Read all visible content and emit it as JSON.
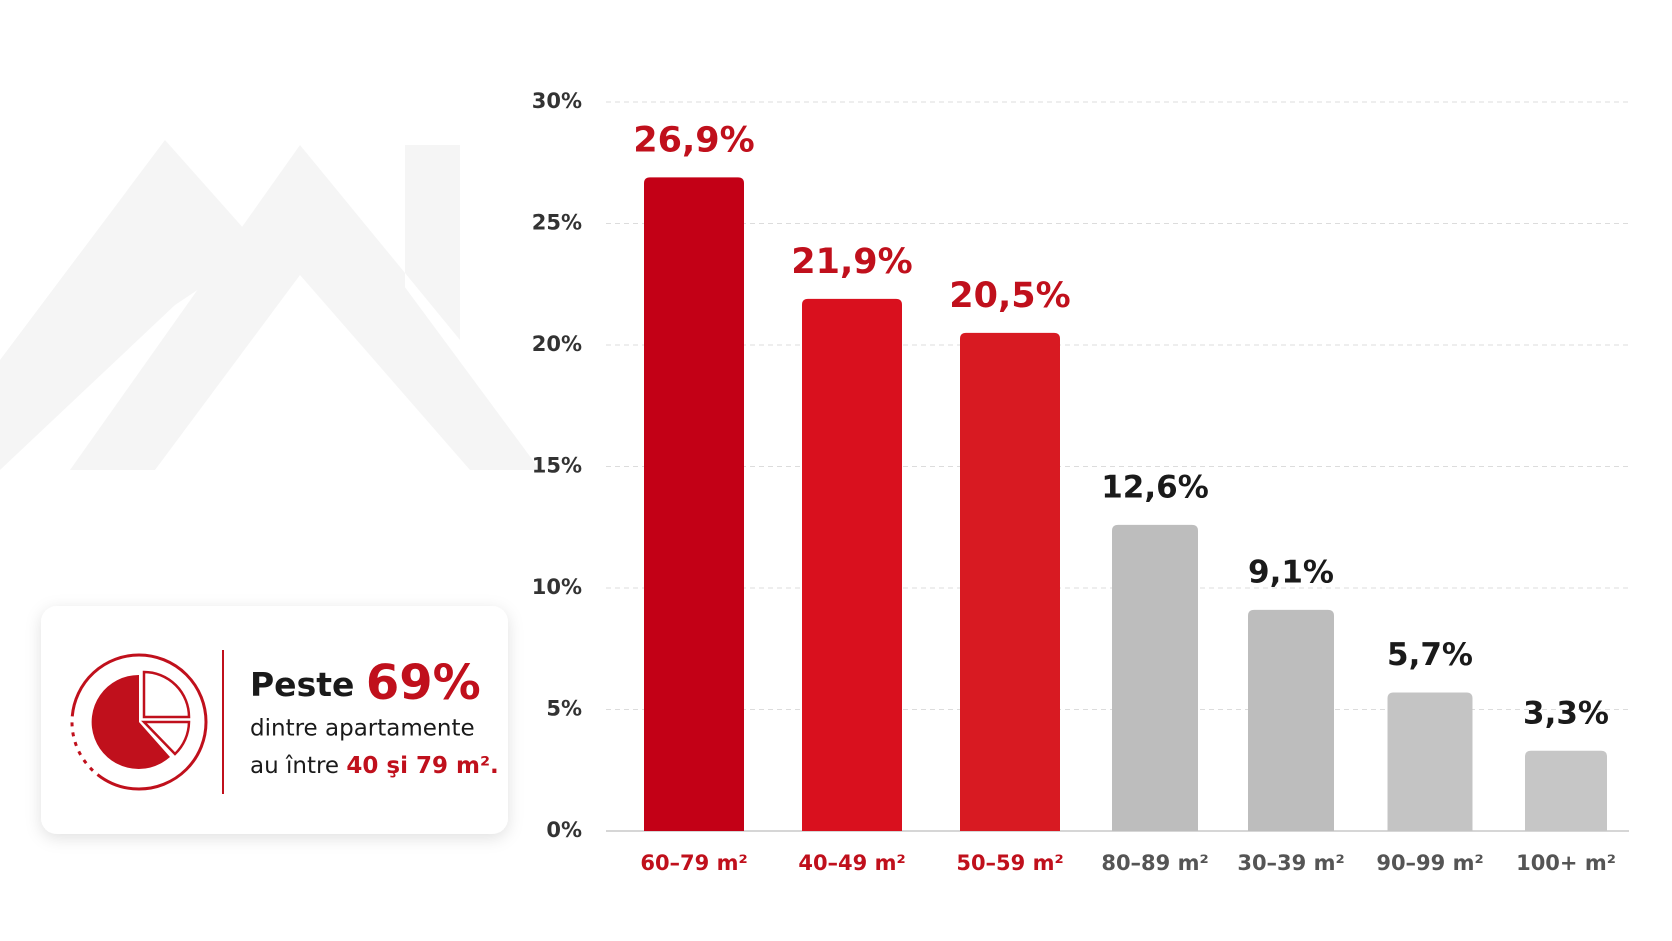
{
  "chart_data": {
    "type": "bar",
    "categories": [
      "60–79 m²",
      "40–49 m²",
      "50–59 m²",
      "80–89 m²",
      "30–39 m²",
      "90–99 m²",
      "100+ m²"
    ],
    "values": [
      26.9,
      21.9,
      20.5,
      12.6,
      9.1,
      5.7,
      3.3
    ],
    "value_labels": [
      "26,9%",
      "21,9%",
      "20,5%",
      "12,6%",
      "9,1%",
      "5,7%",
      "3,3%"
    ],
    "colors": [
      "#c30016",
      "#d9101e",
      "#d81a22",
      "#bdbdbd",
      "#bdbdbd",
      "#c4c4c4",
      "#c6c6c6"
    ],
    "label_colors": [
      "#c0101c",
      "#c0101c",
      "#c0101c",
      "#1a1a1a",
      "#1a1a1a",
      "#1a1a1a",
      "#1a1a1a"
    ],
    "category_colors": [
      "#c0101c",
      "#c0101c",
      "#c0101c",
      "#555555",
      "#555555",
      "#555555",
      "#555555"
    ],
    "ylim": [
      0,
      30
    ],
    "yticks": [
      {
        "value": 0,
        "label": "0%"
      },
      {
        "value": 5,
        "label": "5%"
      },
      {
        "value": 10,
        "label": "10%"
      },
      {
        "value": 15,
        "label": "15%"
      },
      {
        "value": 20,
        "label": "20%"
      },
      {
        "value": 25,
        "label": "25%"
      },
      {
        "value": 30,
        "label": "30%"
      }
    ],
    "grid": true
  },
  "callout": {
    "lead": "Peste",
    "figure": "69%",
    "line2": "dintre apartamente",
    "line3_start": "au între",
    "line3_highlight": "40 şi 79 m²."
  }
}
